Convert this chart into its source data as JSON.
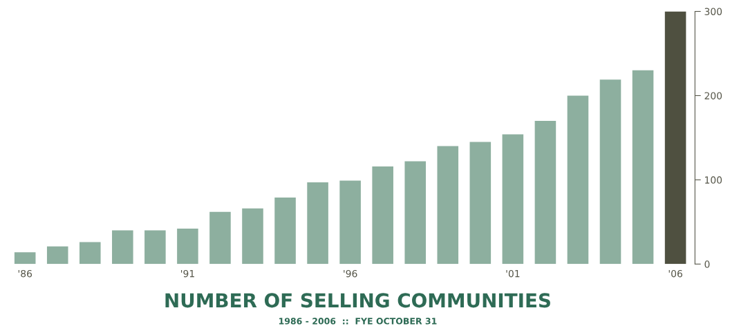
{
  "chart_data": {
    "type": "bar",
    "title": "NUMBER OF SELLING COMMUNITIES",
    "subtitle": "1986 - 2006  ::  FYE OCTOBER 31",
    "categories": [
      "'86",
      null,
      null,
      null,
      null,
      "'91",
      null,
      null,
      null,
      null,
      "'96",
      null,
      null,
      null,
      null,
      "'01",
      null,
      null,
      null,
      null,
      "'06"
    ],
    "values": [
      14,
      21,
      26,
      40,
      40,
      42,
      62,
      66,
      79,
      97,
      99,
      116,
      122,
      140,
      145,
      154,
      170,
      200,
      219,
      230,
      300
    ],
    "colors": [
      "#8daf9f",
      "#8daf9f",
      "#8daf9f",
      "#8daf9f",
      "#8daf9f",
      "#8daf9f",
      "#8daf9f",
      "#8daf9f",
      "#8daf9f",
      "#8daf9f",
      "#8daf9f",
      "#8daf9f",
      "#8daf9f",
      "#8daf9f",
      "#8daf9f",
      "#8daf9f",
      "#8daf9f",
      "#8daf9f",
      "#8daf9f",
      "#8daf9f",
      "#4f5040"
    ],
    "ylim": [
      0,
      300
    ],
    "yticks": [
      0,
      100,
      200,
      300
    ],
    "grid": false,
    "legend": false
  }
}
